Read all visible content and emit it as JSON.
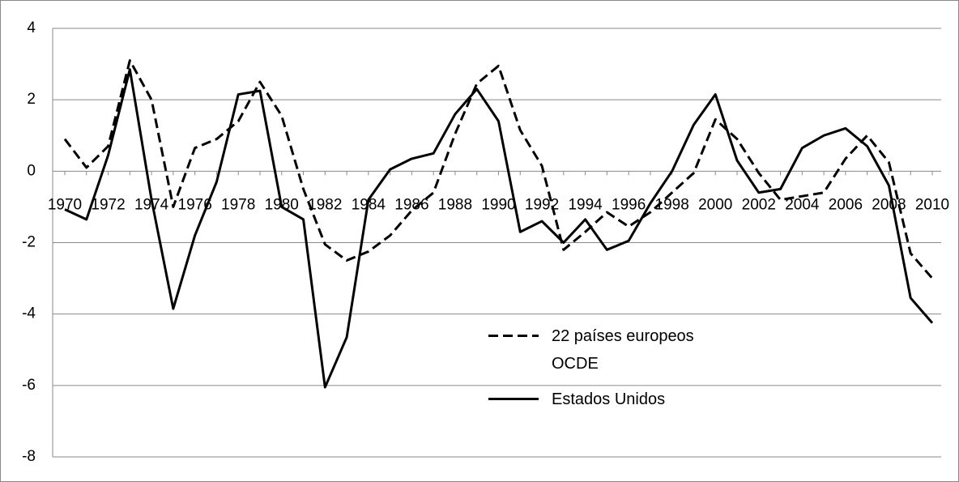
{
  "chart_data": {
    "type": "line",
    "categories": [
      "1970",
      null,
      "1972",
      null,
      "1974",
      null,
      "1976",
      null,
      "1978",
      null,
      "1980",
      null,
      "1982",
      null,
      "1984",
      null,
      "1986",
      null,
      "1988",
      null,
      "1990",
      null,
      "1992",
      null,
      "1994",
      null,
      "1996",
      null,
      "1998",
      null,
      "2000",
      null,
      "2002",
      null,
      "2004",
      null,
      "2006",
      null,
      "2008",
      null,
      "2010"
    ],
    "series": [
      {
        "name": "22 países europeos OCDE",
        "color": "#000000",
        "dash": true,
        "values": [
          0.9,
          0.1,
          0.7,
          3.1,
          2.0,
          -1.0,
          0.65,
          0.9,
          1.4,
          2.5,
          1.55,
          -0.5,
          -2.05,
          -2.5,
          -2.25,
          -1.8,
          -1.1,
          -0.6,
          1.05,
          2.45,
          2.95,
          1.15,
          0.15,
          -2.2,
          -1.7,
          -1.15,
          -1.55,
          -1.15,
          -0.6,
          -0.05,
          1.45,
          0.9,
          -0.05,
          -0.8,
          -0.7,
          -0.6,
          0.35,
          1.0,
          0.25,
          -2.3,
          -3.0
        ]
      },
      {
        "name": "Estados Unidos",
        "color": "#000000",
        "dash": false,
        "values": [
          -1.07,
          -1.35,
          0.45,
          2.85,
          -0.8,
          -3.85,
          -1.8,
          -0.3,
          2.15,
          2.25,
          -1.0,
          -1.35,
          -6.05,
          -4.65,
          -0.8,
          0.05,
          0.35,
          0.5,
          1.6,
          2.3,
          1.4,
          -1.7,
          -1.4,
          -2.0,
          -1.35,
          -2.2,
          -1.95,
          -0.9,
          0.0,
          1.3,
          2.15,
          0.3,
          -0.6,
          -0.5,
          0.65,
          1.0,
          1.2,
          0.7,
          -0.4,
          -3.55,
          -4.25
        ]
      }
    ],
    "ylim": [
      -8,
      4
    ],
    "yticks": [
      -8,
      -6,
      -4,
      -2,
      0,
      2,
      4
    ],
    "grid": true
  }
}
